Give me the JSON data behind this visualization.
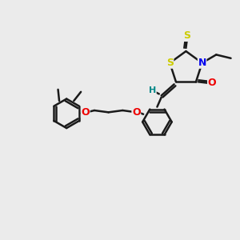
{
  "background_color": "#ebebeb",
  "bond_color": "#1a1a1a",
  "bond_width": 1.8,
  "S_color": "#cccc00",
  "N_color": "#0000ee",
  "O_color": "#ee0000",
  "H_color": "#008888",
  "figsize": [
    3.0,
    3.0
  ],
  "dpi": 100,
  "xlim": [
    0,
    10
  ],
  "ylim": [
    0,
    10
  ]
}
